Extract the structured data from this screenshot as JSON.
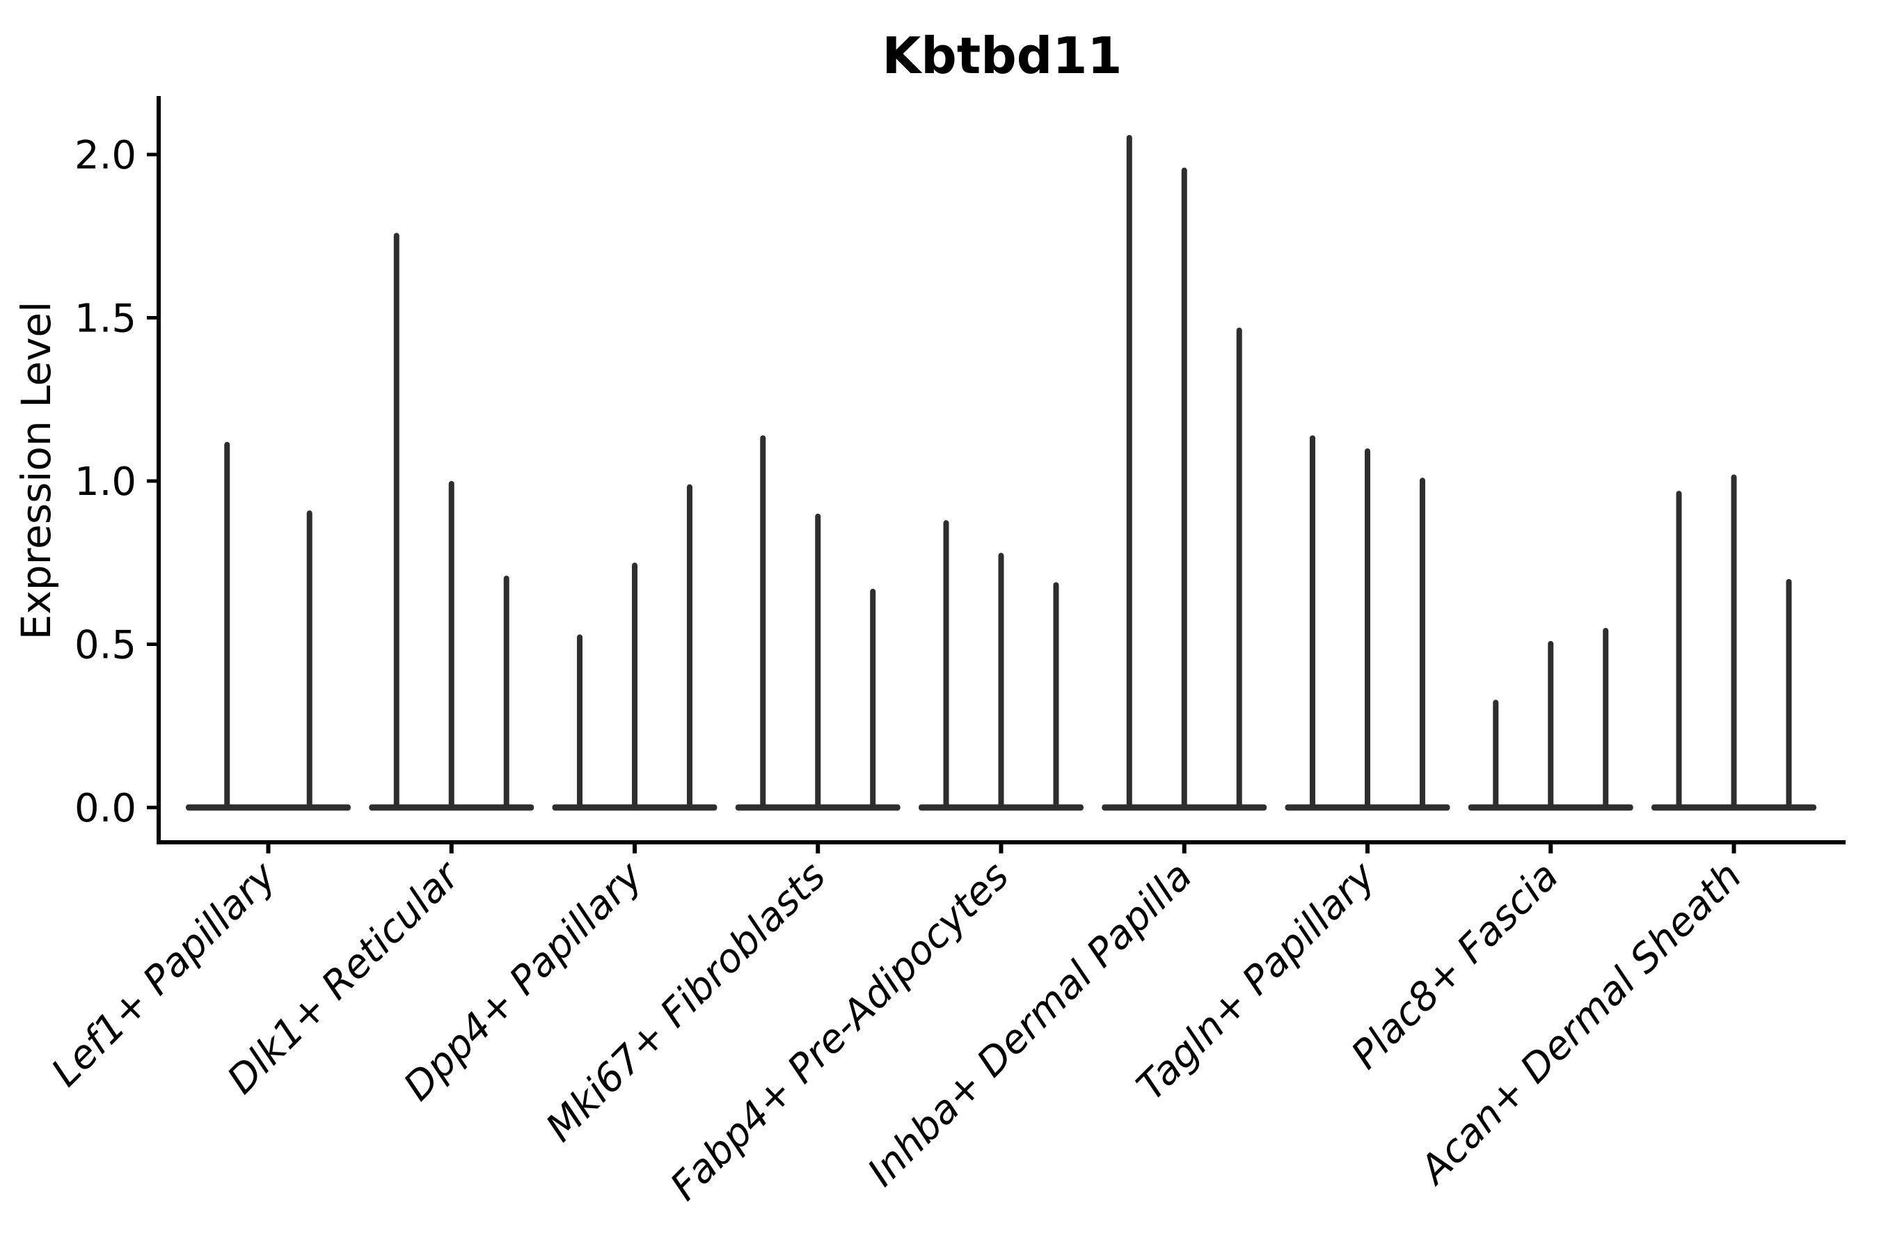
{
  "title": "Kbtbd11",
  "y_axis": {
    "label": "Expression Level",
    "tick_labels": [
      "0.0",
      "0.5",
      "1.0",
      "1.5",
      "2.0"
    ]
  },
  "x_axis": {
    "tick_labels": [
      "Lef1+ Papillary",
      "Dlk1+ Reticular",
      "Dpp4+ Papillary",
      "Mki67+ Fibroblasts",
      "Fabp4+ Pre-Adipocytes",
      "Inhba+ Dermal Papilla",
      "Tagln+ Papillary",
      "Plac8+ Fascia",
      "Acan+ Dermal Sheath"
    ]
  },
  "colors": {
    "violin": "#2e2e2e",
    "axis": "#000000",
    "text": "#000000",
    "background": "#ffffff"
  },
  "chart_data": {
    "type": "violin",
    "title": "Kbtbd11",
    "xlabel": "",
    "ylabel": "Expression Level",
    "ylim": [
      -0.1,
      2.17
    ],
    "yticks": [
      0.0,
      0.5,
      1.0,
      1.5,
      2.0
    ],
    "ytick_labels": [
      "0.0",
      "0.5",
      "1.0",
      "1.5",
      "2.0"
    ],
    "grid": false,
    "legend_position": "none",
    "groups": [
      {
        "label": "Lef1+ Papillary",
        "spike_maxima": [
          1.12,
          0.91
        ]
      },
      {
        "label": "Dlk1+ Reticular",
        "spike_maxima": [
          1.76,
          1.0,
          0.71
        ]
      },
      {
        "label": "Dpp4+ Papillary",
        "spike_maxima": [
          0.53,
          0.75,
          0.99
        ]
      },
      {
        "label": "Mki67+ Fibroblasts",
        "spike_maxima": [
          1.14,
          0.9,
          0.67
        ]
      },
      {
        "label": "Fabp4+ Pre-Adipocytes",
        "spike_maxima": [
          0.88,
          0.78,
          0.69
        ]
      },
      {
        "label": "Inhba+ Dermal Papilla",
        "spike_maxima": [
          2.06,
          1.96,
          1.47
        ]
      },
      {
        "label": "Tagln+ Papillary",
        "spike_maxima": [
          1.14,
          1.1,
          1.01
        ]
      },
      {
        "label": "Plac8+ Fascia",
        "spike_maxima": [
          0.33,
          0.51,
          0.55
        ]
      },
      {
        "label": "Acan+ Dermal Sheath",
        "spike_maxima": [
          0.97,
          1.02,
          0.7
        ]
      }
    ],
    "violin_bulk_at_zero": true
  }
}
